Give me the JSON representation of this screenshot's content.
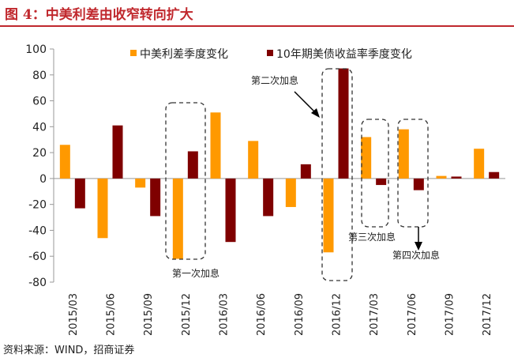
{
  "chart_data": {
    "type": "bar",
    "title": "图 4：中美利差由收窄转向扩大",
    "categories": [
      "2015/03",
      "2015/06",
      "2015/09",
      "2015/12",
      "2016/03",
      "2016/06",
      "2016/09",
      "2016/12",
      "2017/03",
      "2017/06",
      "2017/09",
      "2017/12"
    ],
    "series": [
      {
        "name": "中美利差季度变化",
        "color": "#ff9900",
        "values": [
          26,
          -46,
          -7,
          -62,
          51,
          29,
          -22,
          -57,
          32,
          38,
          2,
          23
        ]
      },
      {
        "name": "10年期美债收益率季度变化",
        "color": "#7f0000",
        "values": [
          -23,
          41,
          -29,
          21,
          -49,
          -29,
          11,
          85,
          -5,
          -9,
          1.5,
          5
        ]
      }
    ],
    "ylim": [
      -80,
      100
    ],
    "yticks": [
      100,
      80,
      60,
      40,
      20,
      0,
      -20,
      -40,
      -60,
      -80
    ],
    "legend": "top",
    "grid": false,
    "annotations": [
      {
        "text": "第一次加息",
        "category": "2015/12"
      },
      {
        "text": "第二次加息",
        "category": "2016/12"
      },
      {
        "text": "第三次加息",
        "category": "2017/03"
      },
      {
        "text": "第四次加息",
        "category": "2017/06"
      }
    ],
    "source": "资料来源：WIND，招商证券"
  }
}
